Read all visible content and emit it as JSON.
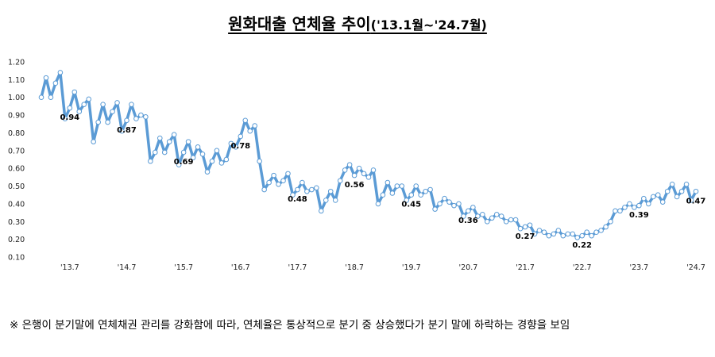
{
  "chart_data": {
    "type": "line",
    "title": "원화대출 연체율 추이",
    "subtitle": "('13.1월~'24.7월)",
    "xlabel": "",
    "ylabel": "",
    "ylim": [
      0.1,
      1.2
    ],
    "grid": false,
    "legend": "none",
    "line_color": "#5b9bd5",
    "marker_fill": "#ffffff",
    "y_ticks": [
      "0.10",
      "0.20",
      "0.30",
      "0.40",
      "0.50",
      "0.60",
      "0.70",
      "0.80",
      "0.90",
      "1.00",
      "1.10",
      "1.20"
    ],
    "x_ticks": [
      {
        "label": "'13.7",
        "index": 6
      },
      {
        "label": "'14.7",
        "index": 18
      },
      {
        "label": "'15.7",
        "index": 30
      },
      {
        "label": "'16.7",
        "index": 42
      },
      {
        "label": "'17.7",
        "index": 54
      },
      {
        "label": "'18.7",
        "index": 66
      },
      {
        "label": "'19.7",
        "index": 78
      },
      {
        "label": "'20.7",
        "index": 90
      },
      {
        "label": "'21.7",
        "index": 102
      },
      {
        "label": "'22.7",
        "index": 114
      },
      {
        "label": "'23.7",
        "index": 126
      },
      {
        "label": "'24.7",
        "index": 138
      }
    ],
    "series": [
      {
        "values": [
          1.0,
          1.11,
          1.0,
          1.08,
          1.14,
          0.88,
          0.94,
          1.03,
          0.92,
          0.96,
          0.99,
          0.75,
          0.86,
          0.96,
          0.86,
          0.92,
          0.97,
          0.81,
          0.87,
          0.96,
          0.88,
          0.9,
          0.89,
          0.64,
          0.69,
          0.77,
          0.69,
          0.75,
          0.79,
          0.62,
          0.69,
          0.75,
          0.66,
          0.72,
          0.68,
          0.58,
          0.64,
          0.7,
          0.63,
          0.65,
          0.74,
          0.72,
          0.78,
          0.87,
          0.81,
          0.84,
          0.64,
          0.48,
          0.52,
          0.56,
          0.51,
          0.53,
          0.57,
          0.45,
          0.48,
          0.52,
          0.47,
          0.48,
          0.49,
          0.36,
          0.42,
          0.47,
          0.42,
          0.53,
          0.59,
          0.62,
          0.56,
          0.6,
          0.57,
          0.55,
          0.59,
          0.4,
          0.45,
          0.52,
          0.46,
          0.5,
          0.5,
          0.42,
          0.45,
          0.5,
          0.45,
          0.47,
          0.48,
          0.37,
          0.4,
          0.43,
          0.41,
          0.39,
          0.4,
          0.33,
          0.36,
          0.38,
          0.33,
          0.34,
          0.3,
          0.32,
          0.34,
          0.33,
          0.3,
          0.31,
          0.31,
          0.26,
          0.27,
          0.28,
          0.23,
          0.25,
          0.24,
          0.22,
          0.23,
          0.25,
          0.22,
          0.23,
          0.23,
          0.21,
          0.22,
          0.24,
          0.22,
          0.24,
          0.25,
          0.27,
          0.3,
          0.36,
          0.36,
          0.38,
          0.4,
          0.38,
          0.39,
          0.43,
          0.4,
          0.44,
          0.45,
          0.41,
          0.47,
          0.51,
          0.44,
          0.47,
          0.51,
          0.42,
          0.47
        ]
      }
    ],
    "data_labels": [
      {
        "index": 6,
        "text": "0.94"
      },
      {
        "index": 18,
        "text": "0.87"
      },
      {
        "index": 30,
        "text": "0.69"
      },
      {
        "index": 42,
        "text": "0.78"
      },
      {
        "index": 54,
        "text": "0.48"
      },
      {
        "index": 66,
        "text": "0.56"
      },
      {
        "index": 78,
        "text": "0.45"
      },
      {
        "index": 90,
        "text": "0.36"
      },
      {
        "index": 102,
        "text": "0.27"
      },
      {
        "index": 114,
        "text": "0.22"
      },
      {
        "index": 126,
        "text": "0.39"
      },
      {
        "index": 138,
        "text": "0.47"
      }
    ]
  },
  "footnote": "※ 은행이 분기말에 연체채권 관리를 강화함에 따라, 연체율은 통상적으로 분기 중 상승했다가 분기 말에 하락하는 경향을 보임"
}
